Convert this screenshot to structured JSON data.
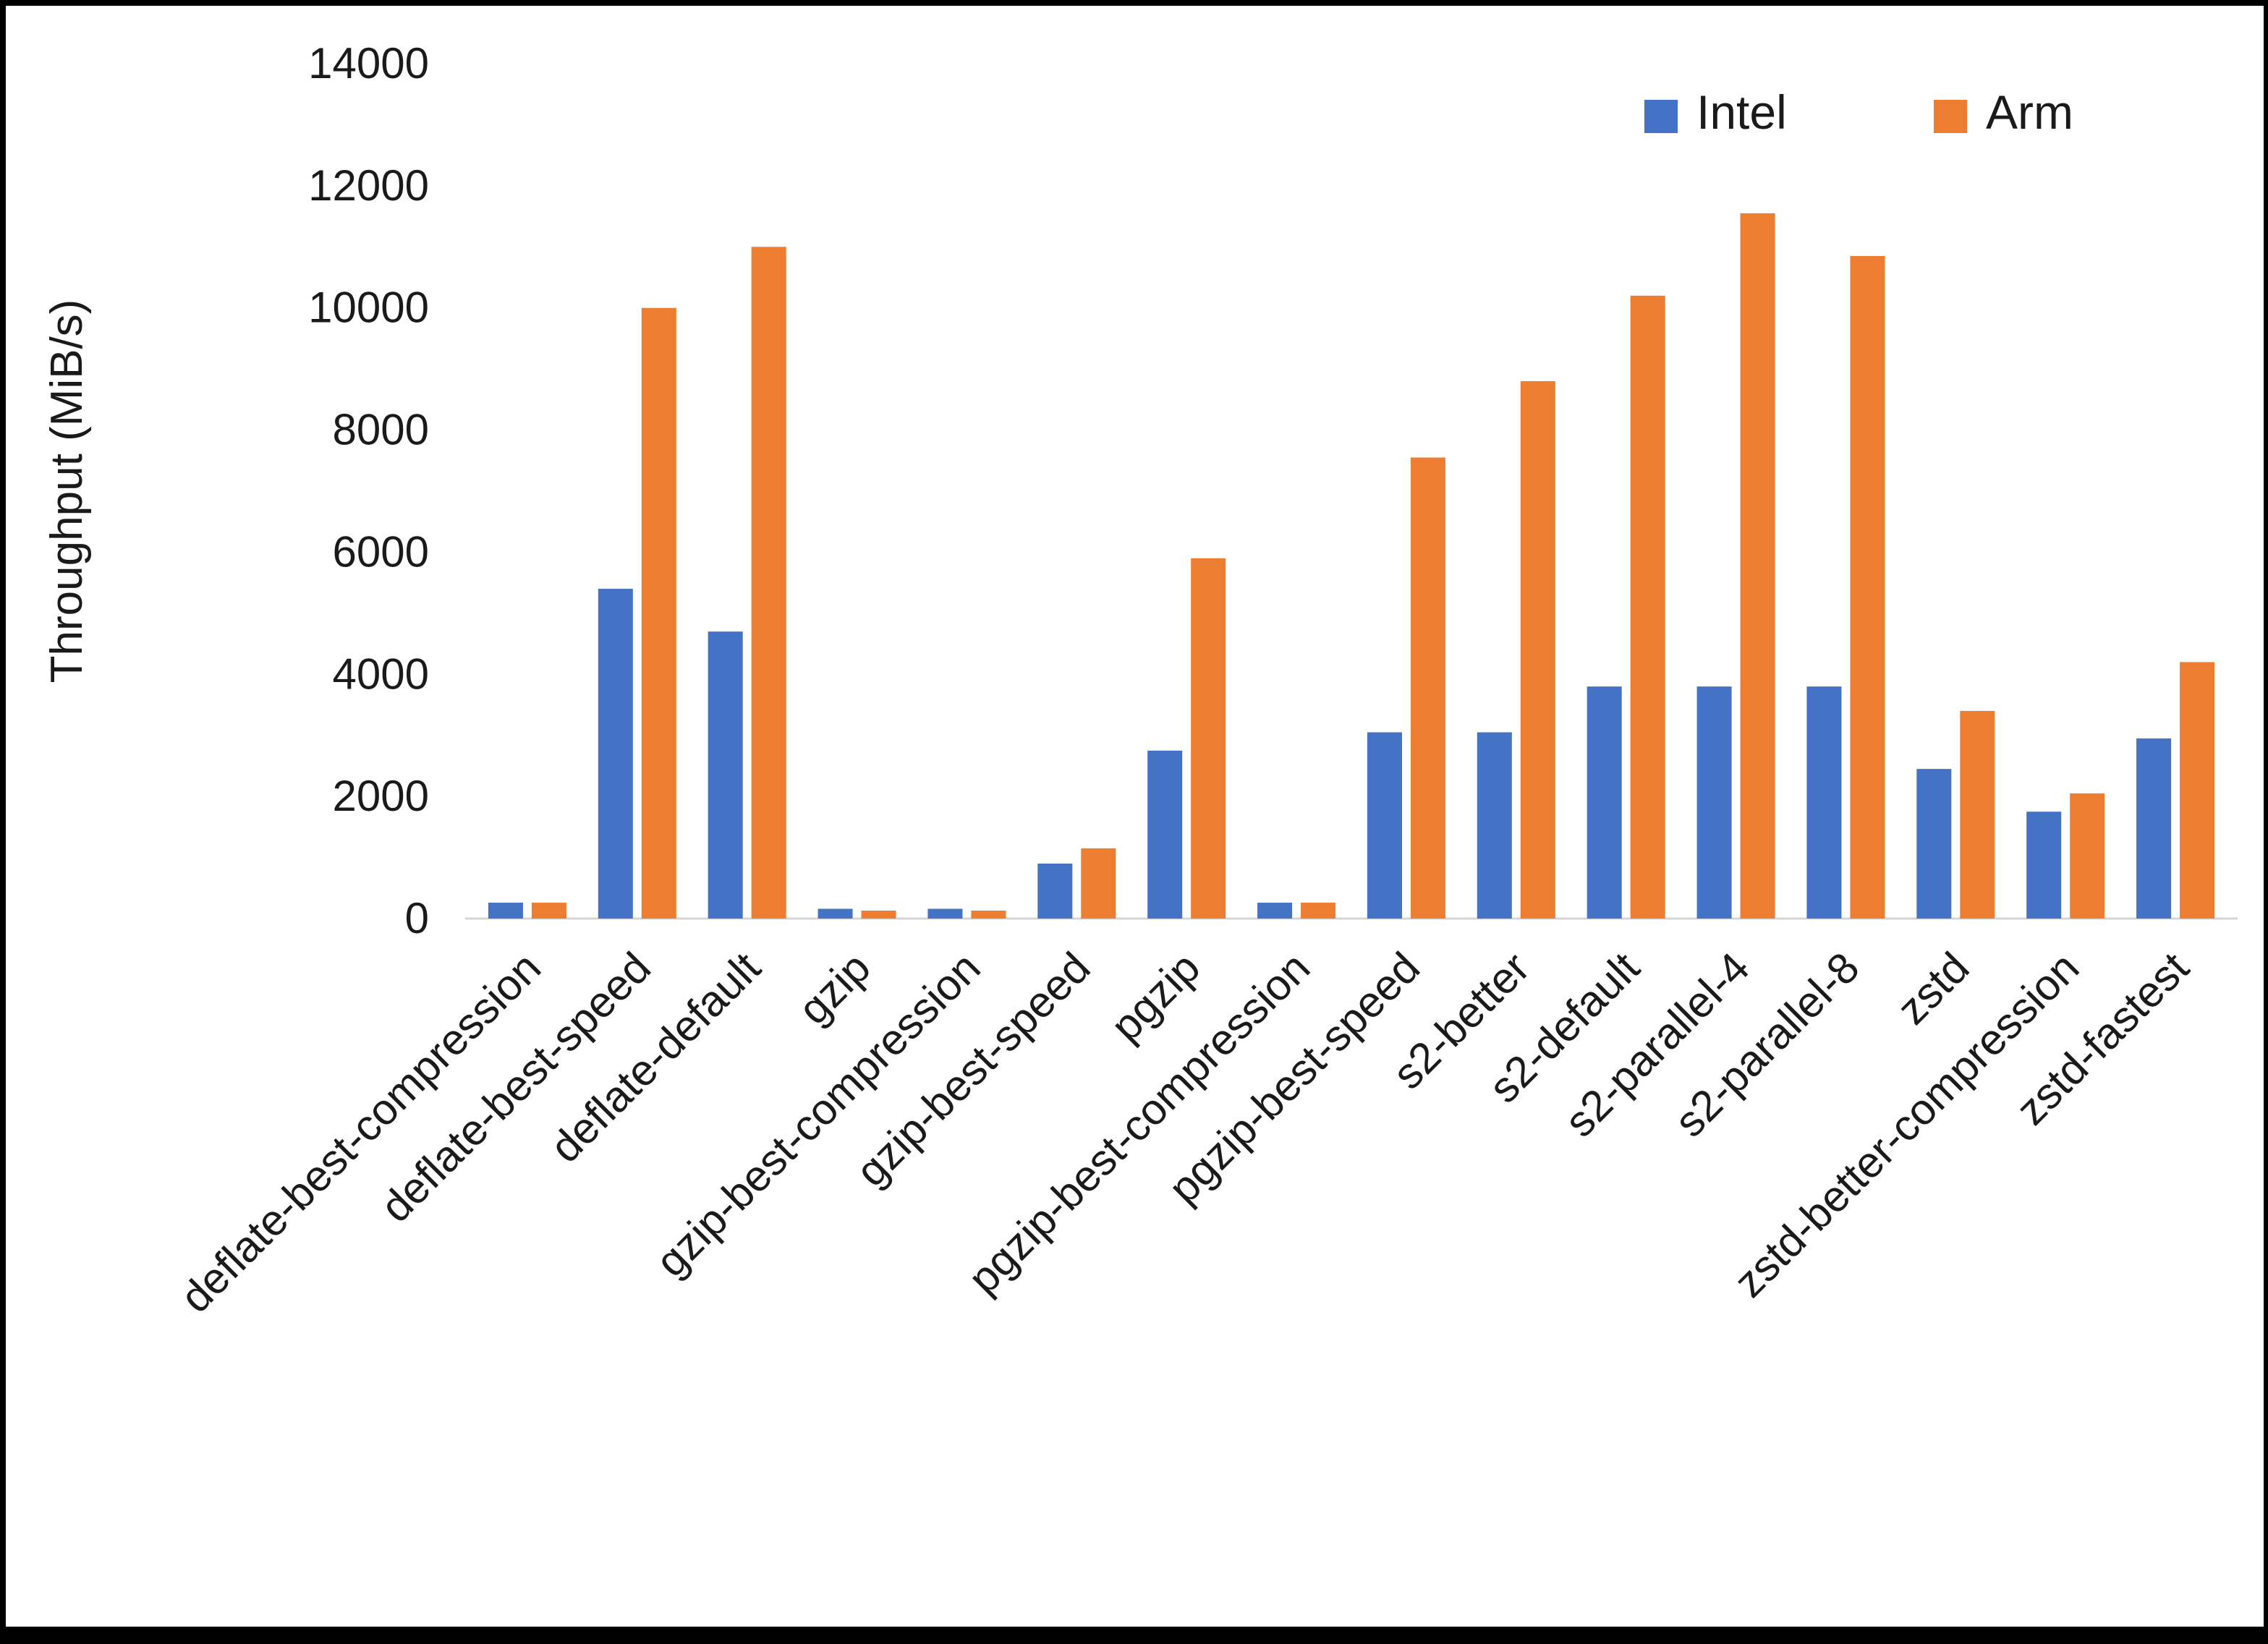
{
  "page": {
    "background": "#ffffff",
    "frame_color": "#000000"
  },
  "chart_data": {
    "type": "bar",
    "title": "",
    "xlabel": "",
    "ylabel": "Throughput (MiB/s)",
    "ylim": [
      0,
      14000
    ],
    "ytick_step": 2000,
    "grid": false,
    "legend_position": "top-right",
    "axis_line_color": "#d6d6d6",
    "categories": [
      "deflate-best-compression",
      "deflate-best-speed",
      "deflate-default",
      "gzip",
      "gzip-best-compression",
      "gzip-best-speed",
      "pgzip",
      "pgzip-best-compression",
      "pgzip-best-speed",
      "s2-better",
      "s2-default",
      "s2-parallel-4",
      "s2-parallel-8",
      "zstd",
      "zstd-better-compression",
      "zstd-fastest"
    ],
    "series": [
      {
        "name": "Intel",
        "color": "#4472C4",
        "values": [
          260,
          5400,
          4700,
          160,
          160,
          900,
          2750,
          260,
          3050,
          3050,
          3800,
          3800,
          3800,
          2450,
          1750,
          2950
        ]
      },
      {
        "name": "Arm",
        "color": "#ED7D31",
        "values": [
          260,
          10000,
          11000,
          130,
          130,
          1150,
          5900,
          260,
          7550,
          8800,
          10200,
          11550,
          10850,
          3400,
          2050,
          4200
        ]
      }
    ]
  }
}
